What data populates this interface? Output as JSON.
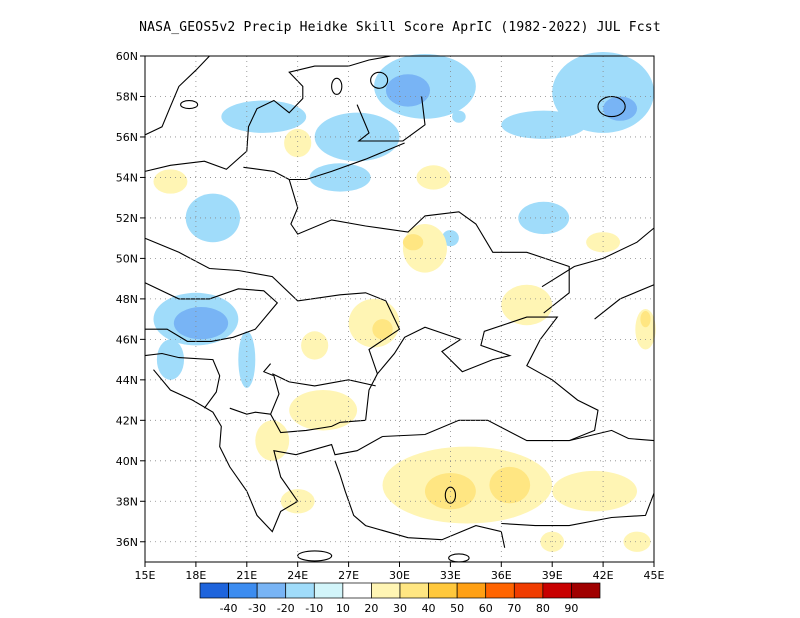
{
  "title": "NASA_GEOS5v2 Precip Heidke Skill Score AprIC (1982-2022) JUL Fcst",
  "lat_ticks": [
    "60N",
    "58N",
    "56N",
    "54N",
    "52N",
    "50N",
    "48N",
    "46N",
    "44N",
    "42N",
    "40N",
    "38N",
    "36N"
  ],
  "lon_ticks": [
    "15E",
    "18E",
    "21E",
    "24E",
    "27E",
    "30E",
    "33E",
    "36E",
    "39E",
    "42E",
    "45E"
  ],
  "extent": {
    "lon_min": 15,
    "lon_max": 45,
    "lat_min": 35,
    "lat_max": 60
  },
  "grid": "dotted",
  "colorbar": {
    "labels": [
      "-40",
      "-30",
      "-20",
      "-10",
      "10",
      "20",
      "30",
      "40",
      "50",
      "60",
      "70",
      "80",
      "90"
    ],
    "colors": [
      "#1e64dc",
      "#3c8cf0",
      "#78b4f5",
      "#a0dcfa",
      "#d2f5fa",
      "#ffffff",
      "#fff5b4",
      "#ffe682",
      "#ffc83c",
      "#ffa014",
      "#ff6400",
      "#f03c00",
      "#c80000",
      "#a00000"
    ]
  },
  "patches": [
    {
      "color": "#a0dcfa",
      "lon": 19.0,
      "lat": 52.0,
      "rx": 1.6,
      "ry": 1.2
    },
    {
      "color": "#a0dcfa",
      "lon": 22.0,
      "lat": 57.0,
      "rx": 2.5,
      "ry": 0.8
    },
    {
      "color": "#a0dcfa",
      "lon": 27.5,
      "lat": 56.0,
      "rx": 2.5,
      "ry": 1.2
    },
    {
      "color": "#a0dcfa",
      "lon": 31.5,
      "lat": 58.5,
      "rx": 3.0,
      "ry": 1.6
    },
    {
      "color": "#78b4f5",
      "lon": 30.5,
      "lat": 58.3,
      "rx": 1.3,
      "ry": 0.8
    },
    {
      "color": "#a0dcfa",
      "lon": 42.0,
      "lat": 58.2,
      "rx": 3.0,
      "ry": 2.0
    },
    {
      "color": "#78b4f5",
      "lon": 43.0,
      "lat": 57.4,
      "rx": 1.0,
      "ry": 0.6
    },
    {
      "color": "#a0dcfa",
      "lon": 38.5,
      "lat": 56.6,
      "rx": 2.5,
      "ry": 0.7
    },
    {
      "color": "#a0dcfa",
      "lon": 38.5,
      "lat": 52.0,
      "rx": 1.5,
      "ry": 0.8
    },
    {
      "color": "#a0dcfa",
      "lon": 18.0,
      "lat": 47.0,
      "rx": 2.5,
      "ry": 1.3
    },
    {
      "color": "#78b4f5",
      "lon": 18.3,
      "lat": 46.8,
      "rx": 1.6,
      "ry": 0.8
    },
    {
      "color": "#a0dcfa",
      "lon": 21.0,
      "lat": 45.0,
      "rx": 0.5,
      "ry": 1.4
    },
    {
      "color": "#a0dcfa",
      "lon": 16.5,
      "lat": 45.0,
      "rx": 0.8,
      "ry": 1.0
    },
    {
      "color": "#a0dcfa",
      "lon": 26.5,
      "lat": 54.0,
      "rx": 1.8,
      "ry": 0.7
    },
    {
      "color": "#a0dcfa",
      "lon": 33.5,
      "lat": 57.0,
      "rx": 0.4,
      "ry": 0.3
    },
    {
      "color": "#a0dcfa",
      "lon": 33.0,
      "lat": 51.0,
      "rx": 0.5,
      "ry": 0.4
    },
    {
      "color": "#fff5b4",
      "lon": 24.0,
      "lat": 55.7,
      "rx": 0.8,
      "ry": 0.7
    },
    {
      "color": "#fff5b4",
      "lon": 16.5,
      "lat": 53.8,
      "rx": 1.0,
      "ry": 0.6
    },
    {
      "color": "#fff5b4",
      "lon": 32.0,
      "lat": 54.0,
      "rx": 1.0,
      "ry": 0.6
    },
    {
      "color": "#fff5b4",
      "lon": 31.5,
      "lat": 50.5,
      "rx": 1.3,
      "ry": 1.2
    },
    {
      "color": "#ffe682",
      "lon": 30.8,
      "lat": 50.8,
      "rx": 0.6,
      "ry": 0.4
    },
    {
      "color": "#fff5b4",
      "lon": 37.5,
      "lat": 47.7,
      "rx": 1.5,
      "ry": 1.0
    },
    {
      "color": "#fff5b4",
      "lon": 42.0,
      "lat": 50.8,
      "rx": 1.0,
      "ry": 0.5
    },
    {
      "color": "#fff5b4",
      "lon": 28.5,
      "lat": 46.8,
      "rx": 1.5,
      "ry": 1.2
    },
    {
      "color": "#ffe682",
      "lon": 29.0,
      "lat": 46.5,
      "rx": 0.6,
      "ry": 0.5
    },
    {
      "color": "#fff5b4",
      "lon": 25.0,
      "lat": 45.7,
      "rx": 0.8,
      "ry": 0.7
    },
    {
      "color": "#fff5b4",
      "lon": 25.5,
      "lat": 42.5,
      "rx": 2.0,
      "ry": 1.0
    },
    {
      "color": "#fff5b4",
      "lon": 22.5,
      "lat": 41.0,
      "rx": 1.0,
      "ry": 1.0
    },
    {
      "color": "#fff5b4",
      "lon": 44.5,
      "lat": 46.5,
      "rx": 0.6,
      "ry": 1.0
    },
    {
      "color": "#ffe682",
      "lon": 44.5,
      "lat": 47.0,
      "rx": 0.3,
      "ry": 0.4
    },
    {
      "color": "#fff5b4",
      "lon": 34.0,
      "lat": 38.8,
      "rx": 5.0,
      "ry": 1.9
    },
    {
      "color": "#ffe682",
      "lon": 33.0,
      "lat": 38.5,
      "rx": 1.5,
      "ry": 0.9
    },
    {
      "color": "#ffe682",
      "lon": 36.5,
      "lat": 38.8,
      "rx": 1.2,
      "ry": 0.9
    },
    {
      "color": "#fff5b4",
      "lon": 41.5,
      "lat": 38.5,
      "rx": 2.5,
      "ry": 1.0
    },
    {
      "color": "#fff5b4",
      "lon": 24.0,
      "lat": 38.0,
      "rx": 1.0,
      "ry": 0.6
    },
    {
      "color": "#fff5b4",
      "lon": 44.0,
      "lat": 36.0,
      "rx": 0.8,
      "ry": 0.5
    },
    {
      "color": "#fff5b4",
      "lon": 39.0,
      "lat": 36.0,
      "rx": 0.7,
      "ry": 0.5
    }
  ]
}
